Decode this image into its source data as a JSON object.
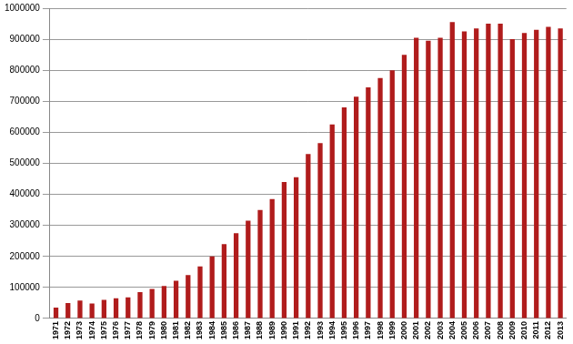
{
  "chart_data": {
    "type": "bar",
    "categories": [
      "1971",
      "1972",
      "1973",
      "1974",
      "1975",
      "1976",
      "1977",
      "1978",
      "1979",
      "1980",
      "1981",
      "1982",
      "1983",
      "1984",
      "1985",
      "1986",
      "1987",
      "1988",
      "1989",
      "1990",
      "1991",
      "1992",
      "1993",
      "1994",
      "1995",
      "1996",
      "1997",
      "1998",
      "1999",
      "2000",
      "2001",
      "2002",
      "2003",
      "2004",
      "2005",
      "2006",
      "2007",
      "2008",
      "2009",
      "2010",
      "2011",
      "2012",
      "2013"
    ],
    "values": [
      35000,
      50000,
      58000,
      48000,
      60000,
      65000,
      68000,
      85000,
      95000,
      105000,
      122000,
      140000,
      168000,
      200000,
      240000,
      275000,
      315000,
      350000,
      385000,
      440000,
      455000,
      530000,
      565000,
      625000,
      680000,
      715000,
      745000,
      775000,
      800000,
      850000,
      905000,
      895000,
      905000,
      955000,
      925000,
      935000,
      950000,
      950000,
      900000,
      920000,
      930000,
      940000,
      935000
    ],
    "color": "#b01c1c",
    "ylim": [
      0,
      1000000
    ],
    "yticks": [
      0,
      100000,
      200000,
      300000,
      400000,
      500000,
      600000,
      700000,
      800000,
      900000,
      1000000
    ],
    "grid": true
  }
}
